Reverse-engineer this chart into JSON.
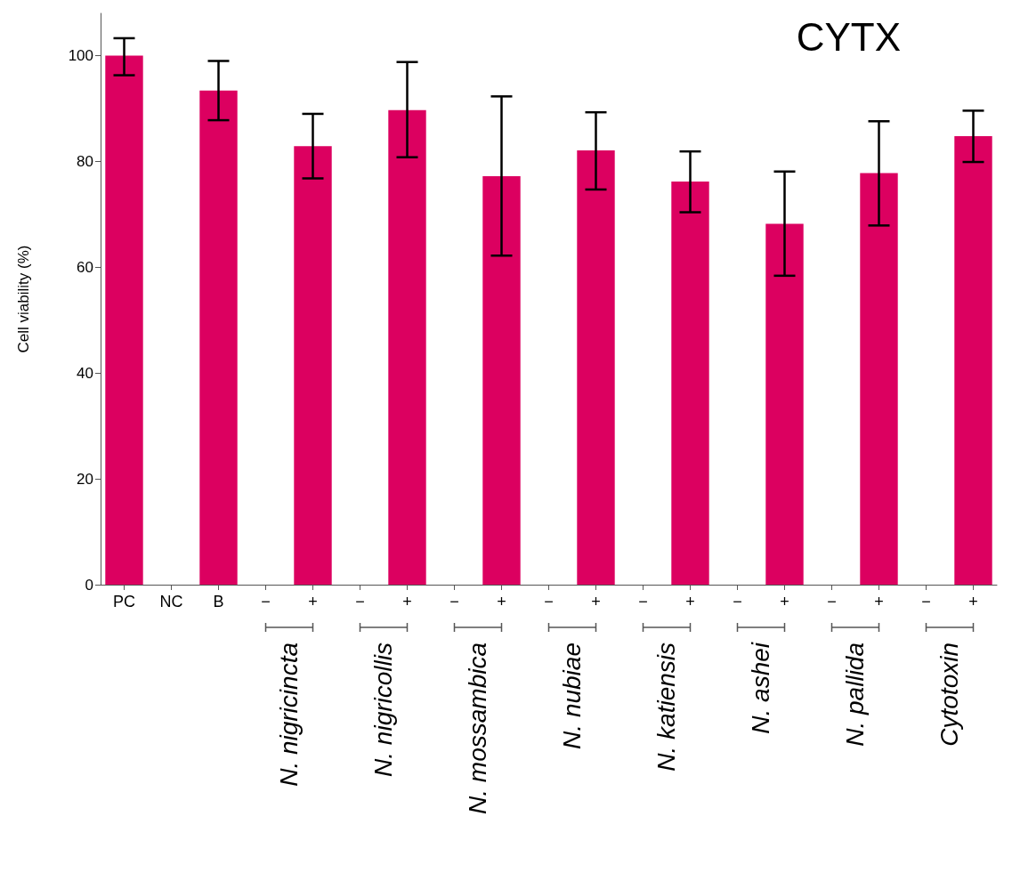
{
  "chart_data": {
    "type": "bar",
    "title": "CYTX",
    "ylabel": "Cell viability (%)",
    "categories": [
      "PC",
      "NC",
      "B",
      "−",
      "+",
      "−",
      "+",
      "−",
      "+",
      "−",
      "+",
      "−",
      "+",
      "−",
      "+",
      "−",
      "+",
      "−",
      "+"
    ],
    "values": [
      100,
      0,
      93.4,
      0,
      82.9,
      0,
      89.7,
      0,
      77.2,
      0,
      82.1,
      0,
      76.2,
      0,
      68.2,
      0,
      77.8,
      0,
      84.8
    ],
    "errors": [
      [
        96.3,
        103.3
      ],
      null,
      [
        87.8,
        99.0
      ],
      null,
      [
        76.8,
        89.0
      ],
      null,
      [
        80.8,
        98.8
      ],
      null,
      [
        62.2,
        92.3
      ],
      null,
      [
        74.7,
        89.3
      ],
      null,
      [
        70.4,
        81.9
      ],
      null,
      [
        58.4,
        78.1
      ],
      null,
      [
        67.9,
        87.6
      ],
      null,
      [
        79.9,
        89.6
      ]
    ],
    "color": "#dc0060",
    "ylim": [
      0,
      108
    ],
    "yticks": [
      0,
      20,
      40,
      60,
      80,
      100
    ],
    "grid": false,
    "annotations": [
      "N. nigricincta",
      "N. nigricollis",
      "N. mossambica",
      "N. nubiae",
      "N. katiensis",
      "N. ashei",
      "N. pallida",
      "Cytotoxin"
    ]
  }
}
